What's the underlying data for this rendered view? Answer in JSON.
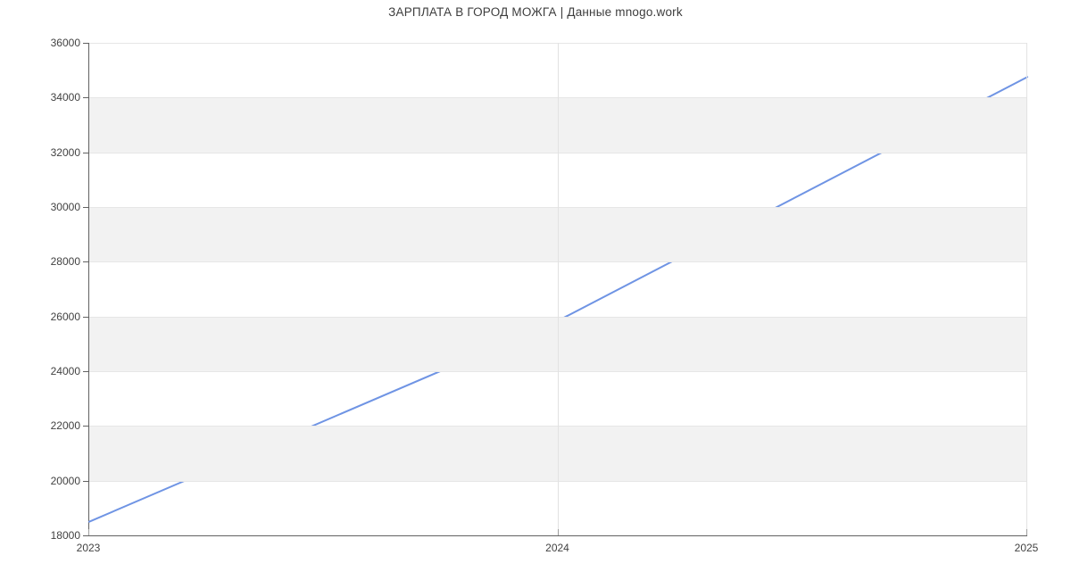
{
  "title": "ЗАРПЛАТА В ГОРОД МОЖГА | Данные mnogo.work",
  "colors": {
    "line": "#6f94e4",
    "band": "#f2f2f2",
    "grid": "#e6e6e6",
    "axis": "#616161",
    "x_tick": "#9e9e9e",
    "title_text": "#3d3d3d",
    "tick_text": "#424242",
    "background": "#ffffff"
  },
  "chart_data": {
    "type": "line",
    "title": "ЗАРПЛАТА В ГОРОД МОЖГА | Данные mnogo.work",
    "x": [
      2023,
      2024,
      2025
    ],
    "xticks": [
      "2023",
      "2024",
      "2025"
    ],
    "values": [
      18500,
      25850,
      34750
    ],
    "ylim": [
      18000,
      36000
    ],
    "ytick_step": 2000,
    "yticks": [
      "18000",
      "20000",
      "22000",
      "24000",
      "26000",
      "28000",
      "30000",
      "32000",
      "34000",
      "36000"
    ],
    "xlabel": "",
    "ylabel": "",
    "legend": "none",
    "grid": "horizontal gridlines every 2000 with alternating gray bands; vertical gridline at each year"
  }
}
